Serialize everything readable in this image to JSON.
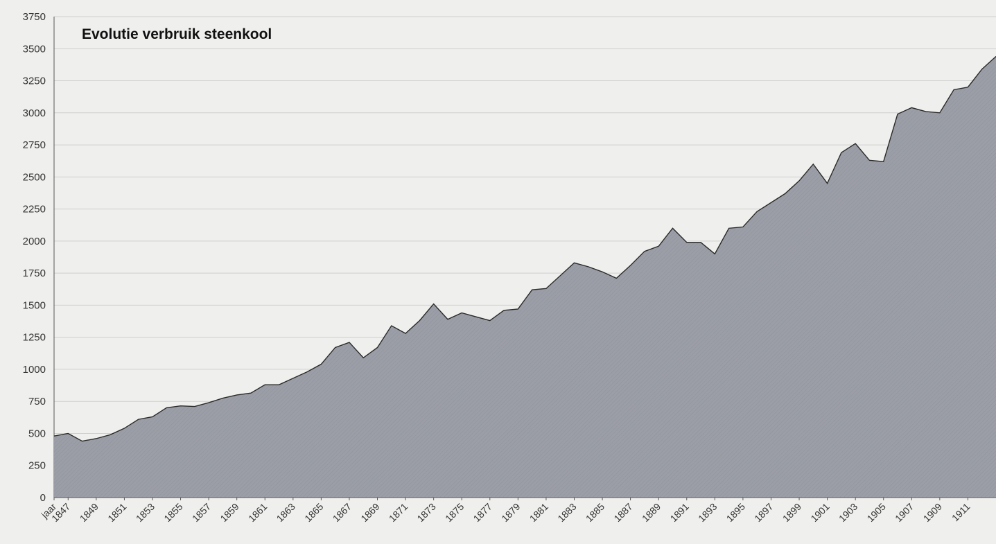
{
  "chart_data": {
    "type": "area",
    "title": "Evolutie verbruik steenkool",
    "xlabel": "",
    "ylabel": "",
    "ylim": [
      0,
      3750
    ],
    "yticks": [
      0,
      250,
      500,
      750,
      1000,
      1250,
      1500,
      1750,
      2000,
      2250,
      2500,
      2750,
      3000,
      3250,
      3500,
      3750
    ],
    "xtick_labels": [
      "jaar",
      "1847",
      "1849",
      "1851",
      "1853",
      "1855",
      "1857",
      "1859",
      "1861",
      "1863",
      "1865",
      "1867",
      "1869",
      "1871",
      "1873",
      "1875",
      "1877",
      "1879",
      "1881",
      "1883",
      "1885",
      "1887",
      "1889",
      "1891",
      "1893",
      "1895",
      "1897",
      "1899",
      "1901",
      "1903",
      "1905",
      "1907",
      "1909",
      "1911"
    ],
    "grid": true,
    "legend": "none",
    "colors": {
      "fill": "#9b9ea6",
      "line": "#2a2a2a",
      "grid": "#cfcfcf",
      "background": "#efefed"
    },
    "x": [
      1846,
      1847,
      1848,
      1849,
      1850,
      1851,
      1852,
      1853,
      1854,
      1855,
      1856,
      1857,
      1858,
      1859,
      1860,
      1861,
      1862,
      1863,
      1864,
      1865,
      1866,
      1867,
      1868,
      1869,
      1870,
      1871,
      1872,
      1873,
      1874,
      1875,
      1876,
      1877,
      1878,
      1879,
      1880,
      1881,
      1882,
      1883,
      1884,
      1885,
      1886,
      1887,
      1888,
      1889,
      1890,
      1891,
      1892,
      1893,
      1894,
      1895,
      1896,
      1897,
      1898,
      1899,
      1900,
      1901,
      1902,
      1903,
      1904,
      1905,
      1906,
      1907,
      1908,
      1909,
      1910,
      1911,
      1912,
      1913
    ],
    "values": [
      480,
      500,
      440,
      460,
      490,
      540,
      610,
      630,
      700,
      715,
      710,
      740,
      775,
      800,
      815,
      880,
      880,
      930,
      980,
      1040,
      1170,
      1210,
      1090,
      1170,
      1340,
      1280,
      1380,
      1510,
      1390,
      1440,
      1410,
      1380,
      1460,
      1470,
      1620,
      1630,
      1730,
      1830,
      1800,
      1760,
      1710,
      1810,
      1920,
      1960,
      2100,
      1990,
      1990,
      1900,
      2100,
      2110,
      2230,
      2300,
      2370,
      2470,
      2600,
      2450,
      2690,
      2760,
      2630,
      2620,
      2990,
      3040,
      3010,
      3000,
      3180,
      3200,
      3340,
      3440
    ]
  }
}
